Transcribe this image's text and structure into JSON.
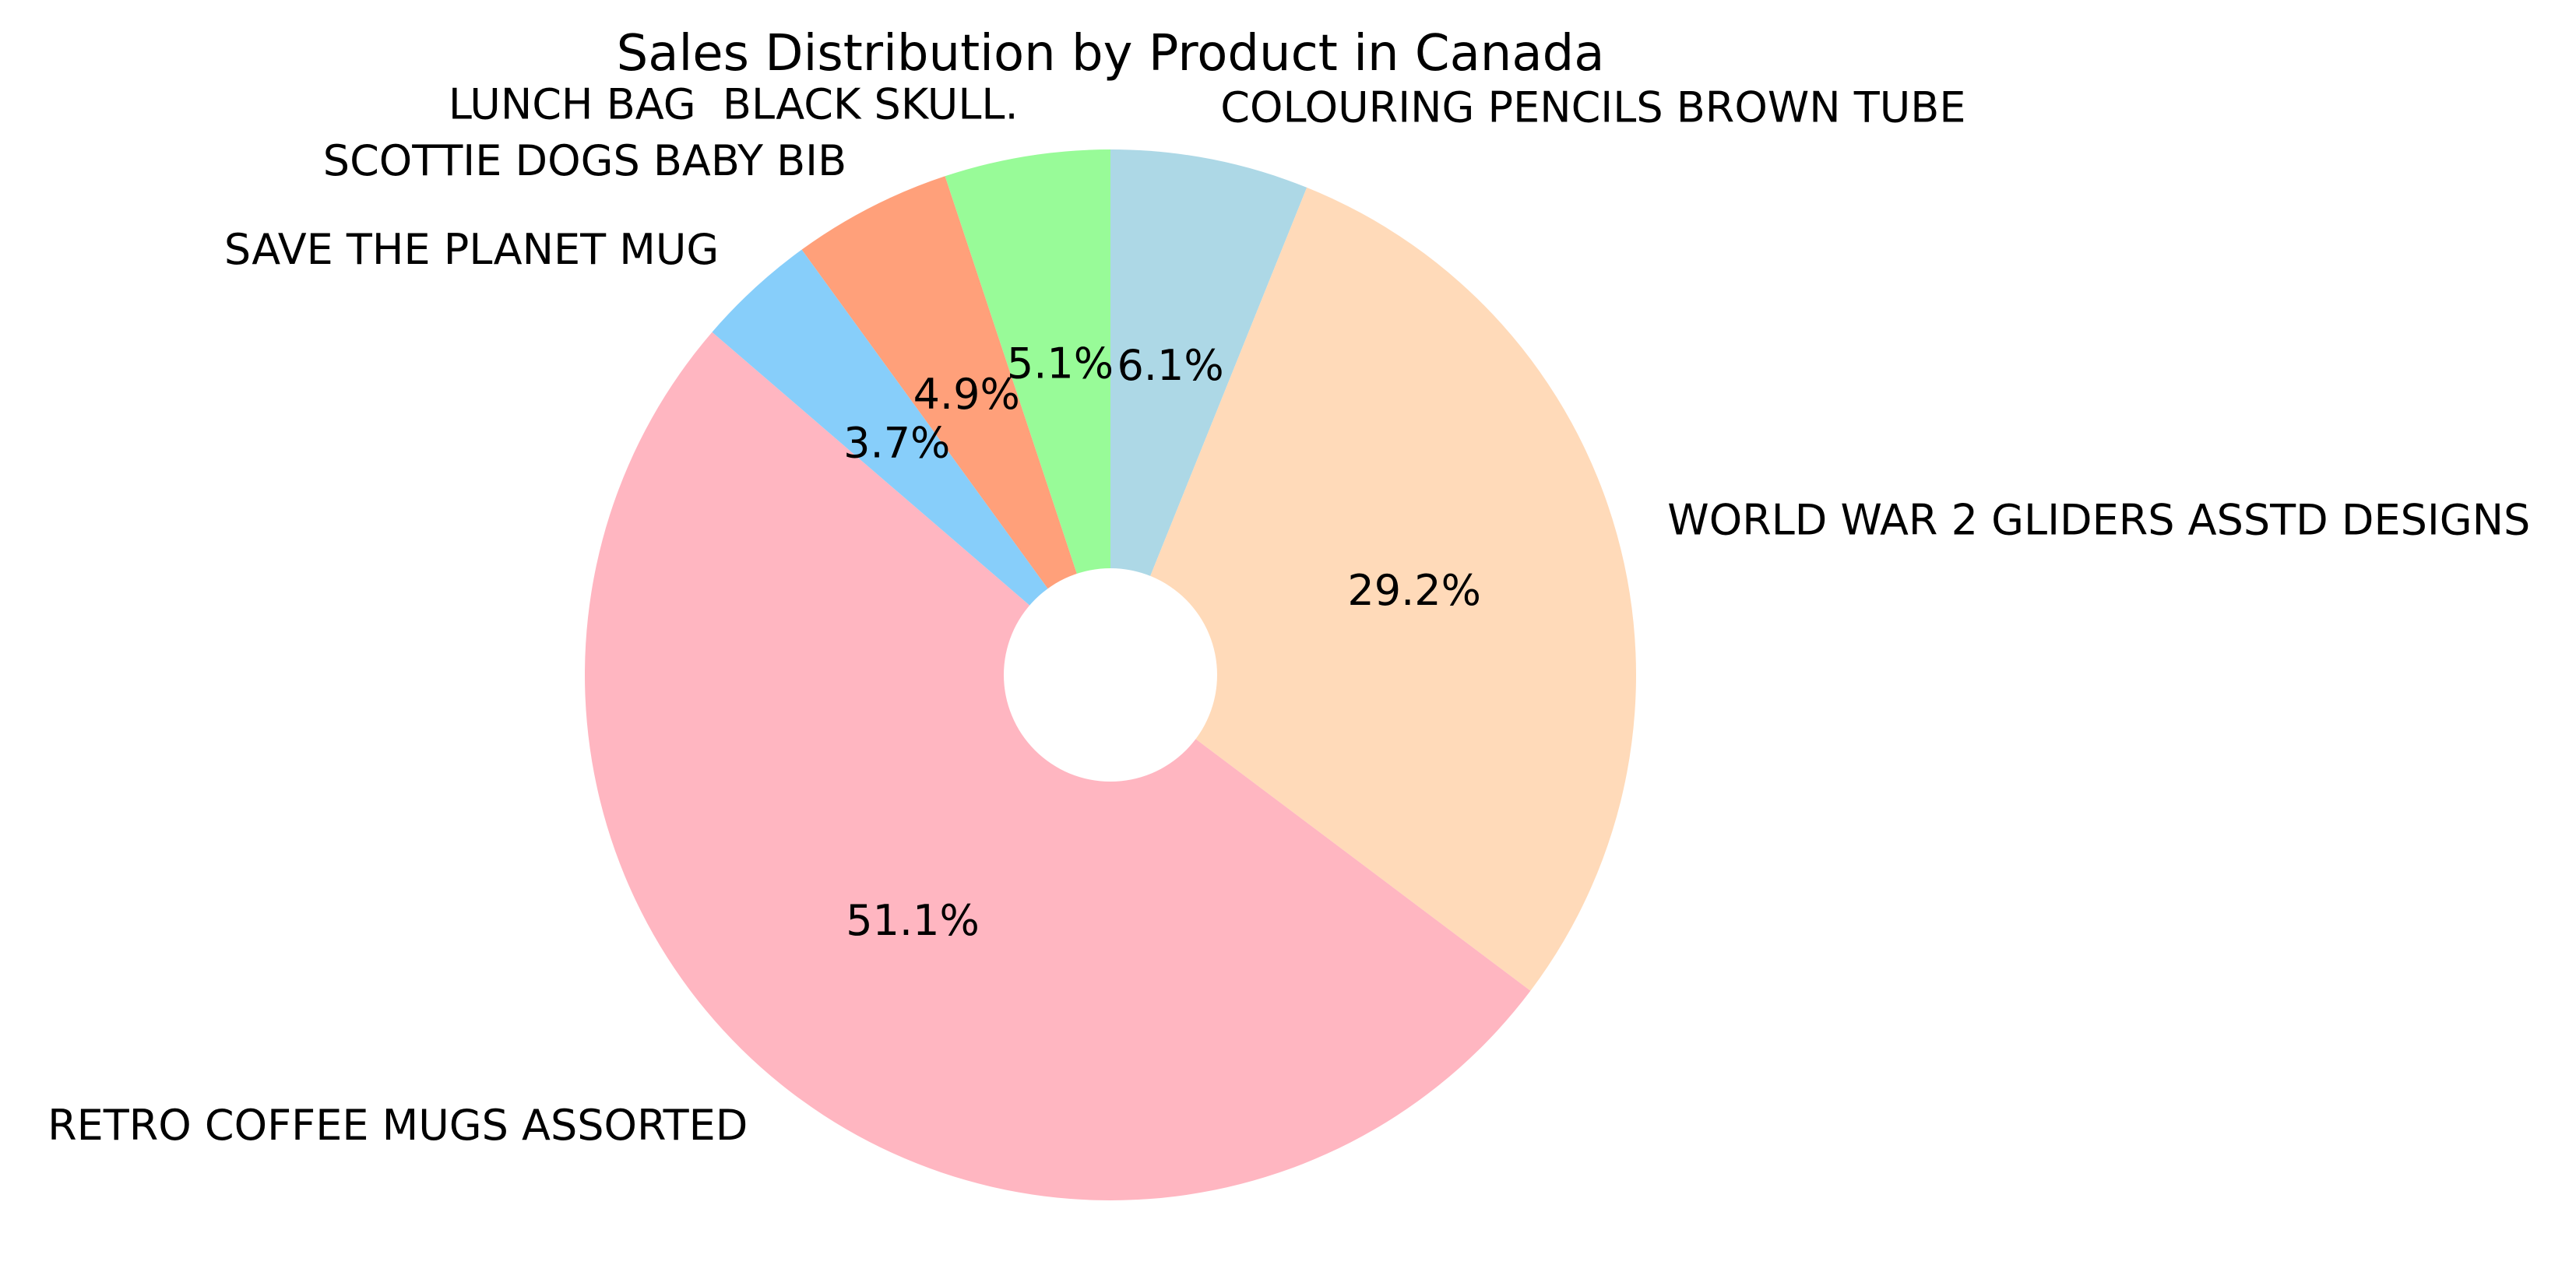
{
  "chart_data": {
    "type": "pie",
    "title": "Sales Distribution by Product in Canada",
    "donut": true,
    "start_angle_deg": 90,
    "direction": "clockwise",
    "slices": [
      {
        "label": "COLOURING PENCILS BROWN TUBE",
        "percent": 6.1,
        "percent_label": "6.1%",
        "color": "#add8e6"
      },
      {
        "label": "WORLD WAR 2 GLIDERS ASSTD DESIGNS",
        "percent": 29.2,
        "percent_label": "29.2%",
        "color": "#ffdab9"
      },
      {
        "label": "RETRO COFFEE MUGS ASSORTED",
        "percent": 51.1,
        "percent_label": "51.1%",
        "color": "#ffb6c1"
      },
      {
        "label": "SAVE THE PLANET MUG",
        "percent": 3.7,
        "percent_label": "3.7%",
        "color": "#87cefa"
      },
      {
        "label": "SCOTTIE DOGS BABY BIB",
        "percent": 4.9,
        "percent_label": "4.9%",
        "color": "#ffa07a"
      },
      {
        "label": "LUNCH BAG  BLACK SKULL.",
        "percent": 5.1,
        "percent_label": "5.1%",
        "color": "#98fb98"
      }
    ]
  }
}
